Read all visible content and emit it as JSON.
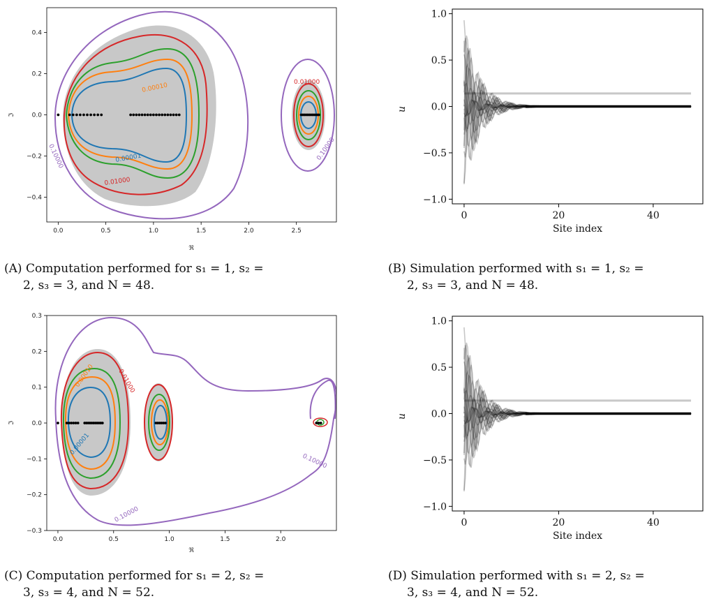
{
  "captions": [
    {
      "line1": "(A) Computation performed for s₁ = 1, s₂ =",
      "line2": "2, s₃ = 3, and N = 48."
    },
    {
      "line1": "(B) Simulation performed with s₁ = 1, s₂ =",
      "line2": "2, s₃ = 3, and N = 48."
    },
    {
      "line1": "(C) Computation performed for s₁ = 2, s₂ =",
      "line2": "3, s₃ = 4, and N = 52."
    },
    {
      "line1": "(D) Simulation performed with s₁ = 2, s₂ =",
      "line2": "3, s₃ = 4, and N = 52."
    }
  ],
  "chart_data": [
    {
      "type": "contour",
      "xlabel": "ℜ",
      "ylabel": "ℑ",
      "xlim": [
        -0.12,
        2.92
      ],
      "ylim": [
        -0.52,
        0.52
      ],
      "xticks": [
        "0.0",
        "0.5",
        "1.0",
        "1.5",
        "2.0",
        "2.5"
      ],
      "yticks": [
        "0.4",
        "0.2",
        "0.0",
        "−0.2",
        "−0.4"
      ],
      "contour_levels": [
        "0.00001",
        "0.00010",
        "0.01000",
        "0.10000"
      ],
      "label_texts": [
        "0.10000",
        "0.00010",
        "0.00001",
        "0.01000",
        "0.01000",
        "0.10000"
      ],
      "colors": {
        "0.00001": "#1f77b4",
        "0.00010": "#ff7f0e",
        "0.00100": "#2ca02c",
        "0.01000": "#d62728",
        "0.10000": "#9467bd",
        "shade": "#c8c8c8"
      }
    },
    {
      "type": "line",
      "xlabel": "Site index",
      "ylabel": "u",
      "xlim": [
        -2.5,
        50.5
      ],
      "ylim": [
        -1.05,
        1.05
      ],
      "xticks": [
        "0",
        "20",
        "40"
      ],
      "yticks": [
        "1.0",
        "0.5",
        "0.0",
        "−0.5",
        "−1.0"
      ],
      "reference_level": 0.14,
      "envelope_peak": 0.93,
      "decay_length": 3.2,
      "active_sites": 13
    },
    {
      "type": "contour",
      "xlabel": "ℜ",
      "ylabel": "ℑ",
      "xlim": [
        -0.1,
        2.5
      ],
      "ylim": [
        -0.3,
        0.3
      ],
      "xticks": [
        "0.0",
        "0.5",
        "1.0",
        "1.5",
        "2.0"
      ],
      "yticks": [
        "0.3",
        "0.2",
        "0.1",
        "0.0",
        "−0.1",
        "−0.2",
        "−0.3"
      ],
      "contour_levels": [
        "0.00001",
        "0.00010",
        "0.01000",
        "0.10000"
      ],
      "label_texts": [
        "0.00010",
        "0.01000",
        "0.00001",
        "0.10000",
        "0.10000"
      ],
      "colors": {
        "0.00001": "#1f77b4",
        "0.00010": "#ff7f0e",
        "0.00100": "#2ca02c",
        "0.01000": "#d62728",
        "0.10000": "#9467bd",
        "shade": "#c8c8c8"
      }
    },
    {
      "type": "line",
      "xlabel": "Site index",
      "ylabel": "u",
      "xlim": [
        -2.5,
        50.5
      ],
      "ylim": [
        -1.05,
        1.05
      ],
      "xticks": [
        "0",
        "20",
        "40"
      ],
      "yticks": [
        "1.0",
        "0.5",
        "0.0",
        "−0.5",
        "−1.0"
      ],
      "reference_level": 0.14,
      "envelope_peak": 0.93,
      "decay_length": 3.2,
      "active_sites": 13
    }
  ]
}
